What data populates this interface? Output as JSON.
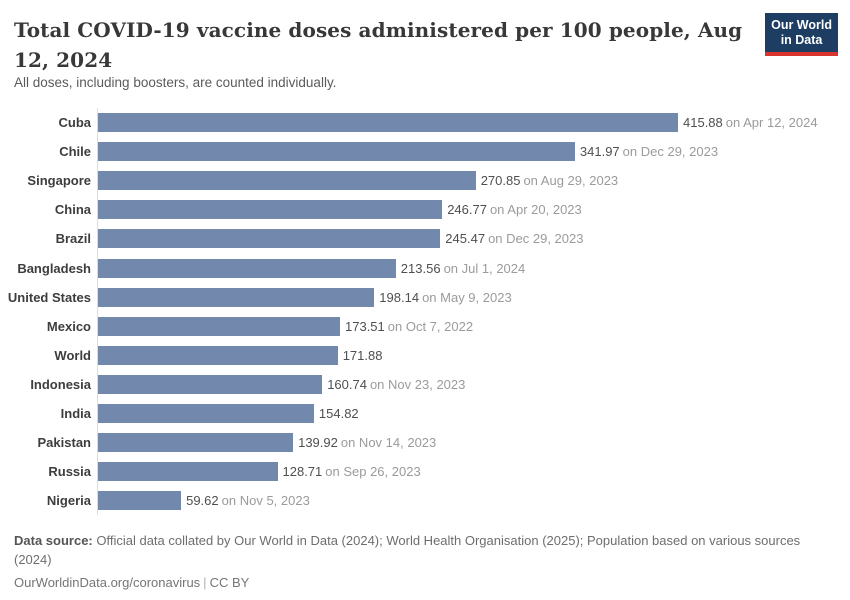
{
  "header": {
    "title": "Total COVID-19 vaccine doses administered per 100 people, Aug 12, 2024",
    "subtitle": "All doses, including boosters, are counted individually.",
    "logo": {
      "line1": "Our World",
      "line2": "in Data"
    }
  },
  "chart_data": {
    "type": "bar",
    "orientation": "horizontal",
    "title": "Total COVID-19 vaccine doses administered per 100 people, Aug 12, 2024",
    "subtitle": "All doses, including boosters, are counted individually.",
    "categories": [
      "Cuba",
      "Chile",
      "Singapore",
      "China",
      "Brazil",
      "Bangladesh",
      "United States",
      "Mexico",
      "World",
      "Indonesia",
      "India",
      "Pakistan",
      "Russia",
      "Nigeria"
    ],
    "values": [
      415.88,
      341.97,
      270.85,
      246.77,
      245.47,
      213.56,
      198.14,
      173.51,
      171.88,
      160.74,
      154.82,
      139.92,
      128.71,
      59.62
    ],
    "xlim": [
      0,
      415.88
    ],
    "grid": false,
    "legend": "none",
    "rows": [
      {
        "label": "Cuba",
        "value": 415.88,
        "value_label": "415.88",
        "date_label": "on Apr 12, 2024"
      },
      {
        "label": "Chile",
        "value": 341.97,
        "value_label": "341.97",
        "date_label": "on Dec 29, 2023"
      },
      {
        "label": "Singapore",
        "value": 270.85,
        "value_label": "270.85",
        "date_label": "on Aug 29, 2023"
      },
      {
        "label": "China",
        "value": 246.77,
        "value_label": "246.77",
        "date_label": "on Apr 20, 2023"
      },
      {
        "label": "Brazil",
        "value": 245.47,
        "value_label": "245.47",
        "date_label": "on Dec 29, 2023"
      },
      {
        "label": "Bangladesh",
        "value": 213.56,
        "value_label": "213.56",
        "date_label": "on Jul 1, 2024"
      },
      {
        "label": "United States",
        "value": 198.14,
        "value_label": "198.14",
        "date_label": "on May 9, 2023"
      },
      {
        "label": "Mexico",
        "value": 173.51,
        "value_label": "173.51",
        "date_label": "on Oct 7, 2022"
      },
      {
        "label": "World",
        "value": 171.88,
        "value_label": "171.88",
        "date_label": ""
      },
      {
        "label": "Indonesia",
        "value": 160.74,
        "value_label": "160.74",
        "date_label": "on Nov 23, 2023"
      },
      {
        "label": "India",
        "value": 154.82,
        "value_label": "154.82",
        "date_label": ""
      },
      {
        "label": "Pakistan",
        "value": 139.92,
        "value_label": "139.92",
        "date_label": "on Nov 14, 2023"
      },
      {
        "label": "Russia",
        "value": 128.71,
        "value_label": "128.71",
        "date_label": "on Sep 26, 2023"
      },
      {
        "label": "Nigeria",
        "value": 59.62,
        "value_label": "59.62",
        "date_label": "on Nov 5, 2023"
      }
    ]
  },
  "footer": {
    "source_label": "Data source:",
    "source_text": " Official data collated by Our World in Data (2024); World Health Organisation (2025); Population based on various sources (2024)",
    "link_text": "OurWorldinData.org/coronavirus",
    "license_text": "CC BY",
    "separator": "|"
  },
  "colors": {
    "bar": "#7289ad",
    "axis_line": "#dcdcdc",
    "logo_bg": "#1d3d63",
    "logo_accent": "#d7352e",
    "value_text": "#4f4f4f",
    "date_text": "#9b9b9b"
  }
}
